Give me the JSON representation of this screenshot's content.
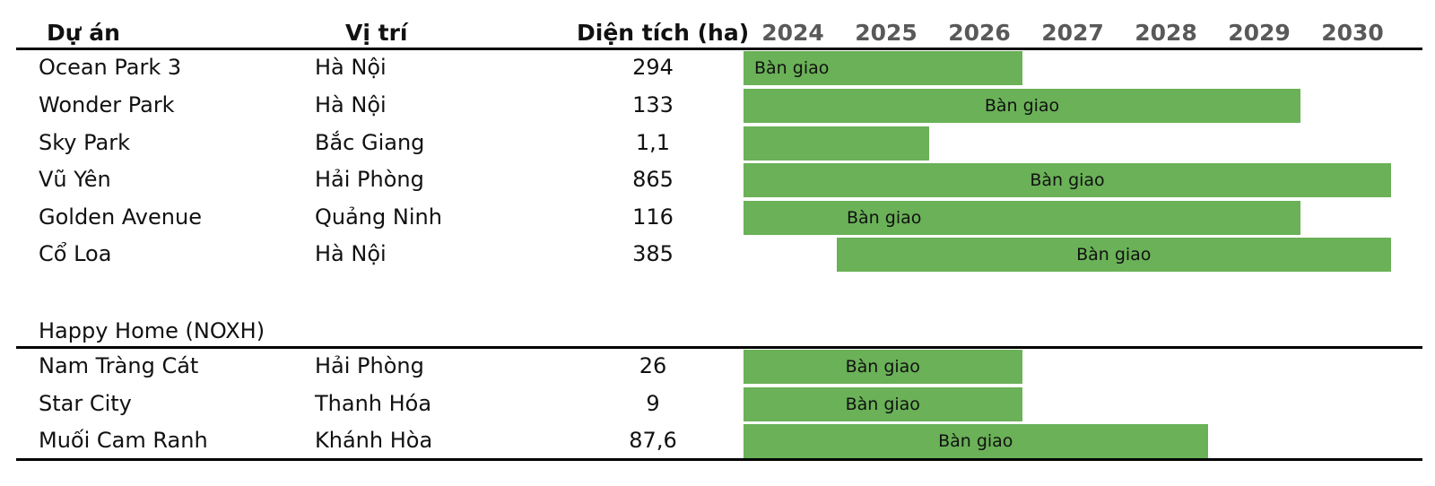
{
  "columns": {
    "project": "Dự án",
    "location": "Vị trí",
    "area": "Diện tích (ha)"
  },
  "years": [
    "2024",
    "2025",
    "2026",
    "2027",
    "2028",
    "2029",
    "2030"
  ],
  "group2_title": "Happy Home (NOXH)",
  "colors": {
    "bar": "#6ab157",
    "year_text": "#595959"
  },
  "chart_data": {
    "type": "table",
    "time_axis": [
      "2024",
      "2025",
      "2026",
      "2027",
      "2028",
      "2029",
      "2030"
    ],
    "groups": [
      {
        "title": "",
        "rows": [
          {
            "project": "Ocean Park 3",
            "location": "Hà Nội",
            "area": "294",
            "start": 2024,
            "end": 2027,
            "label": "Bàn giao",
            "label_pos": "left"
          },
          {
            "project": "Wonder Park",
            "location": "Hà Nội",
            "area": "133",
            "start": 2024,
            "end": 2030,
            "label": "Bàn giao",
            "label_pos": "center"
          },
          {
            "project": "Sky Park",
            "location": "Bắc Giang",
            "area": "1,1",
            "start": 2024,
            "end": 2026,
            "label": "",
            "label_pos": "center"
          },
          {
            "project": "Vũ Yên",
            "location": "Hải Phòng",
            "area": "865",
            "start": 2024,
            "end": 2031,
            "label": "Bàn giao",
            "label_pos": "center"
          },
          {
            "project": "Golden Avenue",
            "location": "Quảng Ninh",
            "area": "116",
            "start": 2024,
            "end": 2030,
            "label": "Bàn giao",
            "label_pos": "left-center"
          },
          {
            "project": "Cổ Loa",
            "location": "Hà Nội",
            "area": "385",
            "start": 2025,
            "end": 2031,
            "label": "Bàn giao",
            "label_pos": "center"
          }
        ]
      },
      {
        "title": "Happy Home (NOXH)",
        "rows": [
          {
            "project": "Nam Tràng Cát",
            "location": "Hải Phòng",
            "area": "26",
            "start": 2024,
            "end": 2027,
            "label": "Bàn giao",
            "label_pos": "center"
          },
          {
            "project": "Star City",
            "location": "Thanh Hóa",
            "area": "9",
            "start": 2024,
            "end": 2027,
            "label": "Bàn giao",
            "label_pos": "center"
          },
          {
            "project": "Muối Cam Ranh",
            "location": "Khánh Hòa",
            "area": "87,6",
            "start": 2024,
            "end": 2029,
            "label": "Bàn giao",
            "label_pos": "center"
          }
        ]
      }
    ]
  }
}
